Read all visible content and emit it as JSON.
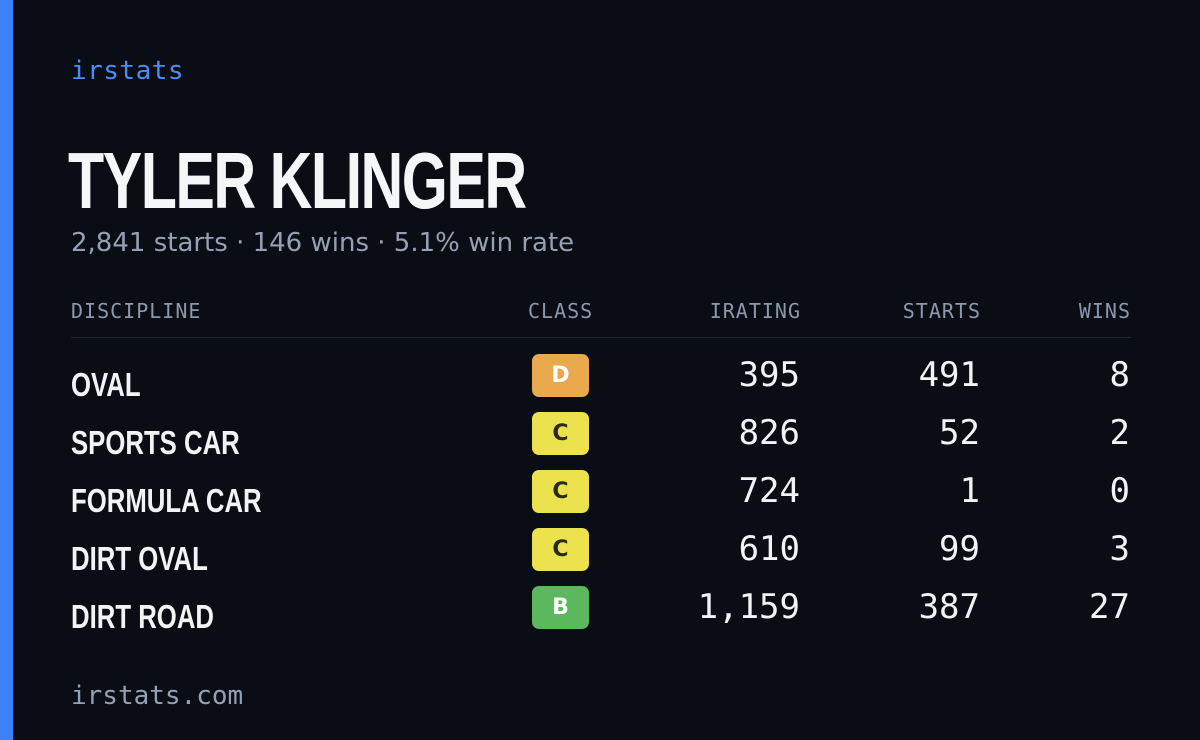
{
  "brand": "irstats",
  "driver": {
    "name": "TYLER KLINGER",
    "summary": "2,841 starts · 146 wins · 5.1% win rate"
  },
  "table": {
    "headers": {
      "discipline": "DISCIPLINE",
      "class": "CLASS",
      "irating": "IRATING",
      "starts": "STARTS",
      "wins": "WINS"
    },
    "rows": [
      {
        "discipline": "OVAL",
        "class": "D",
        "class_bg": "#e9a84b",
        "class_fg": "#ffffff",
        "irating": "395",
        "starts": "491",
        "wins": "8"
      },
      {
        "discipline": "SPORTS CAR",
        "class": "C",
        "class_bg": "#ece24e",
        "class_fg": "#2b2b1a",
        "irating": "826",
        "starts": "52",
        "wins": "2"
      },
      {
        "discipline": "FORMULA CAR",
        "class": "C",
        "class_bg": "#ece24e",
        "class_fg": "#2b2b1a",
        "irating": "724",
        "starts": "1",
        "wins": "0"
      },
      {
        "discipline": "DIRT OVAL",
        "class": "C",
        "class_bg": "#ece24e",
        "class_fg": "#2b2b1a",
        "irating": "610",
        "starts": "99",
        "wins": "3"
      },
      {
        "discipline": "DIRT ROAD",
        "class": "B",
        "class_bg": "#5cb85c",
        "class_fg": "#ffffff",
        "irating": "1,159",
        "starts": "387",
        "wins": "27"
      }
    ]
  },
  "footer": {
    "url": "irstats.com"
  },
  "colors": {
    "background": "#0a0d14",
    "accent": "#3b82f6",
    "muted_text": "#94a0b4"
  }
}
